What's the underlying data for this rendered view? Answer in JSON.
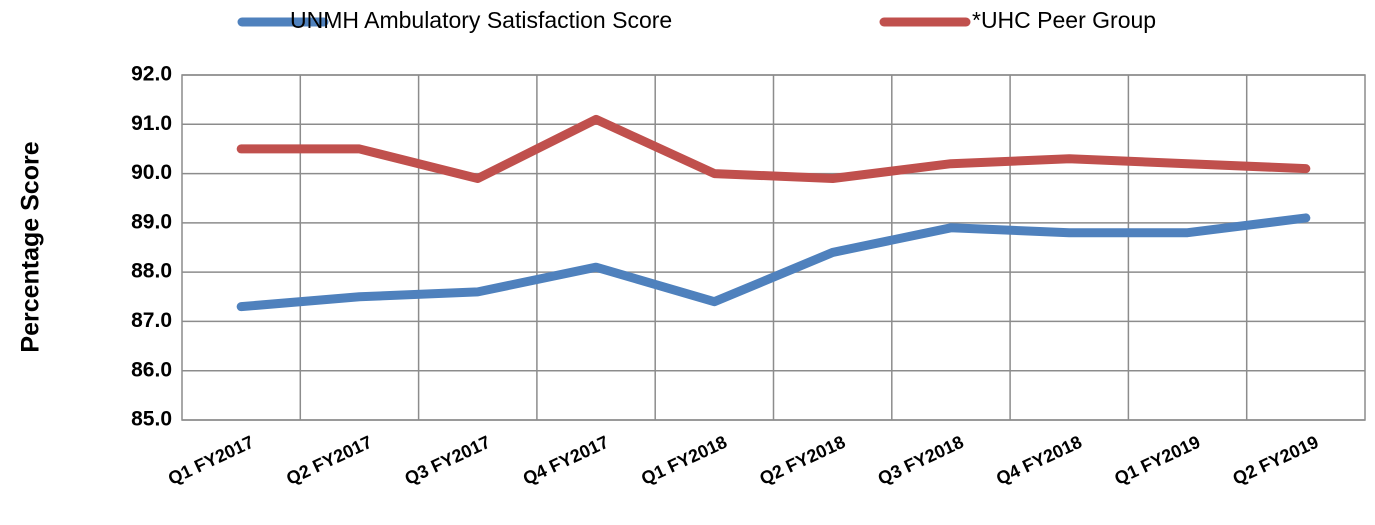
{
  "chart_data": {
    "type": "line",
    "ylabel": "Percentage Score",
    "categories": [
      "Q1 FY2017",
      "Q2 FY2017",
      "Q3 FY2017",
      "Q4 FY2017",
      "Q1 FY2018",
      "Q2 FY2018",
      "Q3 FY2018",
      "Q4 FY2018",
      "Q1 FY2019",
      "Q2 FY2019"
    ],
    "series": [
      {
        "name": "UNMH Ambulatory Satisfaction Score",
        "color": "#4f81bd",
        "values": [
          87.3,
          87.5,
          87.6,
          88.1,
          87.4,
          88.4,
          88.9,
          88.8,
          88.8,
          89.1
        ]
      },
      {
        "name": "*UHC Peer Group",
        "color": "#c0504d",
        "values": [
          90.5,
          90.5,
          89.9,
          91.1,
          90.0,
          89.9,
          90.2,
          90.3,
          90.2,
          90.1
        ]
      }
    ],
    "ylim": [
      85,
      92
    ],
    "yticks": [
      {
        "value": 85,
        "label": "85.0"
      },
      {
        "value": 86,
        "label": "86.0"
      },
      {
        "value": 87,
        "label": "87.0"
      },
      {
        "value": 88,
        "label": "88.0"
      },
      {
        "value": 89,
        "label": "89.0"
      },
      {
        "value": 90,
        "label": "90.0"
      },
      {
        "value": 91,
        "label": "91.0"
      },
      {
        "value": 92,
        "label": "92.0"
      }
    ],
    "grid": true,
    "legend": "top"
  }
}
